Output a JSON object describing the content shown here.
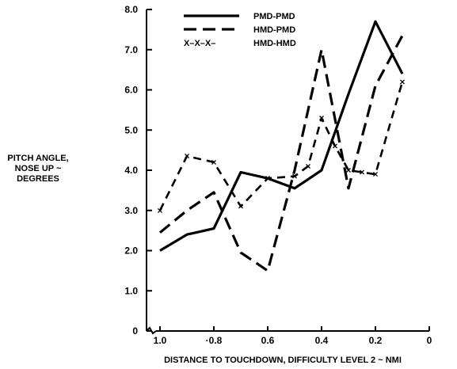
{
  "chart_data": {
    "type": "line",
    "xlabel": "DISTANCE TO TOUCHDOWN, DIFFICULTY LEVEL 2 ~ NMI",
    "ylabel_lines": [
      "PITCH ANGLE,",
      "NOSE UP ~",
      "DEGREES"
    ],
    "xlim": [
      1.0,
      0
    ],
    "ylim": [
      0,
      8.0
    ],
    "x_reversed": true,
    "x_ticks": [
      1.0,
      0.8,
      0.6,
      0.4,
      0.2,
      0
    ],
    "x_tick_labels": [
      "1.0",
      "·0.8",
      "0.6",
      "0.4",
      "0.2",
      "0"
    ],
    "y_ticks": [
      0,
      1.0,
      2.0,
      3.0,
      4.0,
      5.0,
      6.0,
      7.0,
      8.0
    ],
    "y_tick_labels": [
      "0",
      "1.0",
      "2.0",
      "3.0",
      "4.0",
      "5.0",
      "6.0",
      "7.0",
      "8.0"
    ],
    "grid": false,
    "legend_position": "top-center",
    "legend_markers": [
      "",
      "",
      "X–X–X–"
    ],
    "series": [
      {
        "name": "PMD-PMD",
        "style": "solid",
        "x": [
          1.0,
          0.9,
          0.8,
          0.7,
          0.6,
          0.5,
          0.4,
          0.3,
          0.2,
          0.1
        ],
        "y": [
          2.0,
          2.4,
          2.55,
          3.95,
          3.8,
          3.55,
          4.0,
          5.9,
          7.7,
          6.4
        ]
      },
      {
        "name": "HMD-PMD",
        "style": "dashed",
        "x": [
          1.0,
          0.9,
          0.8,
          0.7,
          0.6,
          0.5,
          0.4,
          0.3,
          0.2,
          0.1
        ],
        "y": [
          2.45,
          3.0,
          3.45,
          1.95,
          1.5,
          4.0,
          7.0,
          3.55,
          6.1,
          7.35
        ]
      },
      {
        "name": "HMD-HMD",
        "style": "dash-x",
        "x": [
          1.0,
          0.9,
          0.8,
          0.7,
          0.6,
          0.5,
          0.45,
          0.4,
          0.35,
          0.3,
          0.25,
          0.2,
          0.1
        ],
        "y": [
          3.0,
          4.35,
          4.2,
          3.1,
          3.8,
          3.85,
          4.1,
          5.3,
          4.6,
          4.0,
          3.95,
          3.9,
          6.2
        ]
      }
    ]
  }
}
